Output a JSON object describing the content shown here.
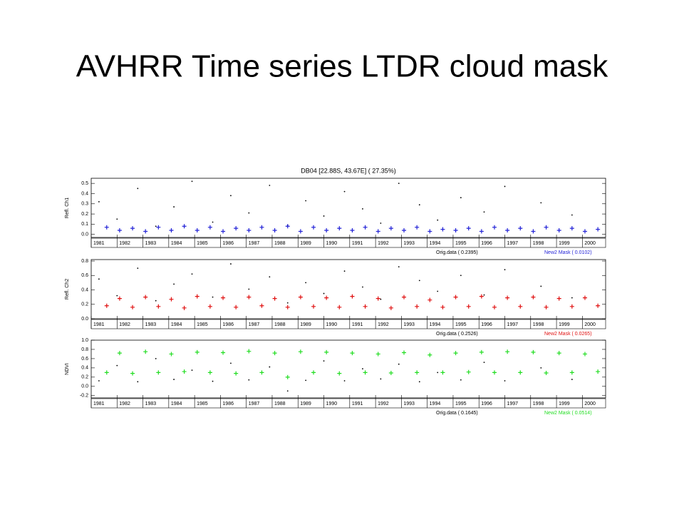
{
  "title": "AVHRR Time series LTDR cloud mask",
  "chart_data": [
    {
      "type": "scatter",
      "title": "DB04 [22.88S, 43.67E] ( 27.35%)",
      "y_label": "Refl. Ch1",
      "xlim": [
        1981,
        2000.9
      ],
      "xticks": [
        1981,
        1982,
        1983,
        1984,
        1985,
        1986,
        1987,
        1988,
        1989,
        1990,
        1991,
        1992,
        1993,
        1994,
        1995,
        1996,
        1997,
        1998,
        1999,
        2000
      ],
      "ylim": [
        -0.03,
        0.55
      ],
      "yticks": [
        {
          "value": 0,
          "label": "0.0"
        },
        0.1,
        0.2,
        0.3,
        0.4,
        0.5
      ],
      "series": [
        {
          "name": "Orig.data ( 0.2395)",
          "color": "#000000",
          "marker": "dot",
          "x": [
            1981.3,
            1982.0,
            1982.8,
            1983.5,
            1984.2,
            1984.9,
            1985.7,
            1986.4,
            1987.1,
            1987.9,
            1988.6,
            1989.3,
            1990.0,
            1990.8,
            1991.5,
            1992.2,
            1992.9,
            1993.7,
            1994.4,
            1995.3,
            1996.2,
            1997.0,
            1998.4,
            1999.6
          ],
          "values": [
            0.32,
            0.15,
            0.45,
            0.08,
            0.27,
            0.52,
            0.12,
            0.38,
            0.21,
            0.48,
            0.09,
            0.33,
            0.18,
            0.42,
            0.25,
            0.11,
            0.5,
            0.29,
            0.14,
            0.36,
            0.22,
            0.47,
            0.31,
            0.19
          ]
        },
        {
          "name": "New2 Mask ( 0.0102)",
          "color": "#1f1fd6",
          "marker": "plus",
          "x": [
            1981.6,
            1982.1,
            1982.6,
            1983.1,
            1983.6,
            1984.1,
            1984.6,
            1985.1,
            1985.6,
            1986.1,
            1986.6,
            1987.1,
            1987.6,
            1988.1,
            1988.6,
            1989.1,
            1989.6,
            1990.1,
            1990.6,
            1991.1,
            1991.6,
            1992.1,
            1992.6,
            1993.1,
            1993.6,
            1994.1,
            1994.6,
            1995.1,
            1995.6,
            1996.1,
            1996.6,
            1997.1,
            1997.6,
            1998.1,
            1998.6,
            1999.1,
            1999.6,
            2000.1,
            2000.6
          ],
          "values": [
            0.07,
            0.04,
            0.06,
            0.03,
            0.07,
            0.04,
            0.08,
            0.04,
            0.07,
            0.03,
            0.06,
            0.04,
            0.07,
            0.04,
            0.08,
            0.03,
            0.07,
            0.04,
            0.06,
            0.04,
            0.07,
            0.03,
            0.06,
            0.04,
            0.07,
            0.03,
            0.05,
            0.04,
            0.06,
            0.03,
            0.07,
            0.04,
            0.06,
            0.03,
            0.07,
            0.04,
            0.06,
            0.03,
            0.05
          ]
        }
      ]
    },
    {
      "type": "scatter",
      "y_label": "Refl. Ch2",
      "xlim": [
        1981,
        2000.9
      ],
      "xticks": [
        1981,
        1982,
        1983,
        1984,
        1985,
        1986,
        1987,
        1988,
        1989,
        1990,
        1991,
        1992,
        1993,
        1994,
        1995,
        1996,
        1997,
        1998,
        1999,
        2000
      ],
      "ylim": [
        0,
        0.82
      ],
      "yticks": [
        {
          "value": 0,
          "label": "0.0"
        },
        0.2,
        0.4,
        0.6,
        0.8
      ],
      "series": [
        {
          "name": "Orig.data ( 0.2526)",
          "color": "#000000",
          "marker": "dot",
          "x": [
            1981.3,
            1982.0,
            1982.8,
            1983.5,
            1984.2,
            1984.9,
            1985.7,
            1986.4,
            1987.1,
            1987.9,
            1988.6,
            1989.3,
            1990.0,
            1990.8,
            1991.5,
            1992.2,
            1992.9,
            1993.7,
            1994.4,
            1995.3,
            1996.2,
            1997.0,
            1998.4,
            1999.6
          ],
          "values": [
            0.55,
            0.32,
            0.7,
            0.25,
            0.48,
            0.62,
            0.3,
            0.76,
            0.41,
            0.58,
            0.22,
            0.5,
            0.35,
            0.66,
            0.44,
            0.27,
            0.72,
            0.53,
            0.38,
            0.6,
            0.33,
            0.68,
            0.45,
            0.29
          ]
        },
        {
          "name": "New2 Mask ( 0.0265)",
          "color": "#e01010",
          "marker": "plus",
          "x": [
            1981.6,
            1982.1,
            1982.6,
            1983.1,
            1983.6,
            1984.1,
            1984.6,
            1985.1,
            1985.6,
            1986.1,
            1986.6,
            1987.1,
            1987.6,
            1988.1,
            1988.6,
            1989.1,
            1989.6,
            1990.1,
            1990.6,
            1991.1,
            1991.6,
            1992.1,
            1992.6,
            1993.1,
            1993.6,
            1994.1,
            1994.6,
            1995.1,
            1995.6,
            1996.1,
            1996.6,
            1997.1,
            1997.6,
            1998.1,
            1998.6,
            1999.1,
            1999.6,
            2000.1,
            2000.6
          ],
          "values": [
            0.18,
            0.28,
            0.16,
            0.3,
            0.17,
            0.27,
            0.15,
            0.31,
            0.17,
            0.29,
            0.16,
            0.3,
            0.18,
            0.28,
            0.16,
            0.3,
            0.17,
            0.29,
            0.16,
            0.31,
            0.17,
            0.28,
            0.15,
            0.3,
            0.17,
            0.26,
            0.16,
            0.3,
            0.17,
            0.31,
            0.16,
            0.29,
            0.17,
            0.3,
            0.16,
            0.28,
            0.17,
            0.29,
            0.18
          ]
        }
      ]
    },
    {
      "type": "scatter",
      "y_label": "NDVI",
      "xlim": [
        1981,
        2000.9
      ],
      "xticks": [
        1981,
        1982,
        1983,
        1984,
        1985,
        1986,
        1987,
        1988,
        1989,
        1990,
        1991,
        1992,
        1993,
        1994,
        1995,
        1996,
        1997,
        1998,
        1999,
        2000
      ],
      "ylim": [
        -0.25,
        1.0
      ],
      "yticks": [
        -0.2,
        {
          "value": 0,
          "label": "0.0"
        },
        0.2,
        0.4,
        0.6,
        0.8,
        {
          "value": 1,
          "label": "1.0"
        }
      ],
      "series": [
        {
          "name": "Orig.data ( 0.1645)",
          "color": "#000000",
          "marker": "dot",
          "x": [
            1981.3,
            1982.0,
            1982.8,
            1983.5,
            1984.2,
            1984.9,
            1985.7,
            1986.4,
            1987.1,
            1987.9,
            1988.6,
            1989.3,
            1990.0,
            1990.8,
            1991.5,
            1992.2,
            1992.9,
            1993.7,
            1994.4,
            1995.3,
            1996.2,
            1997.0,
            1998.4,
            1999.6
          ],
          "values": [
            0.12,
            0.45,
            0.1,
            0.6,
            0.15,
            0.35,
            0.11,
            0.5,
            0.14,
            0.42,
            -0.1,
            0.13,
            0.55,
            0.12,
            0.38,
            0.16,
            0.48,
            0.1,
            0.3,
            0.14,
            0.52,
            0.12,
            0.4,
            0.15
          ]
        },
        {
          "name": "New2 Mask ( 0.0514)",
          "color": "#22dd22",
          "marker": "plus",
          "x": [
            1981.6,
            1982.1,
            1982.6,
            1983.1,
            1983.6,
            1984.1,
            1984.6,
            1985.1,
            1985.6,
            1986.1,
            1986.6,
            1987.1,
            1987.6,
            1988.1,
            1988.6,
            1989.1,
            1989.6,
            1990.1,
            1990.6,
            1991.1,
            1991.6,
            1992.1,
            1992.6,
            1993.1,
            1993.6,
            1994.1,
            1994.6,
            1995.1,
            1995.6,
            1996.1,
            1996.6,
            1997.1,
            1997.6,
            1998.1,
            1998.6,
            1999.1,
            1999.6,
            2000.1,
            2000.6
          ],
          "values": [
            0.3,
            0.72,
            0.28,
            0.75,
            0.3,
            0.7,
            0.32,
            0.74,
            0.3,
            0.73,
            0.28,
            0.76,
            0.3,
            0.72,
            0.2,
            0.75,
            0.3,
            0.74,
            0.28,
            0.72,
            0.3,
            0.7,
            0.29,
            0.73,
            0.3,
            0.68,
            0.3,
            0.72,
            0.31,
            0.74,
            0.3,
            0.75,
            0.3,
            0.74,
            0.29,
            0.72,
            0.3,
            0.7,
            0.32
          ]
        }
      ]
    }
  ]
}
